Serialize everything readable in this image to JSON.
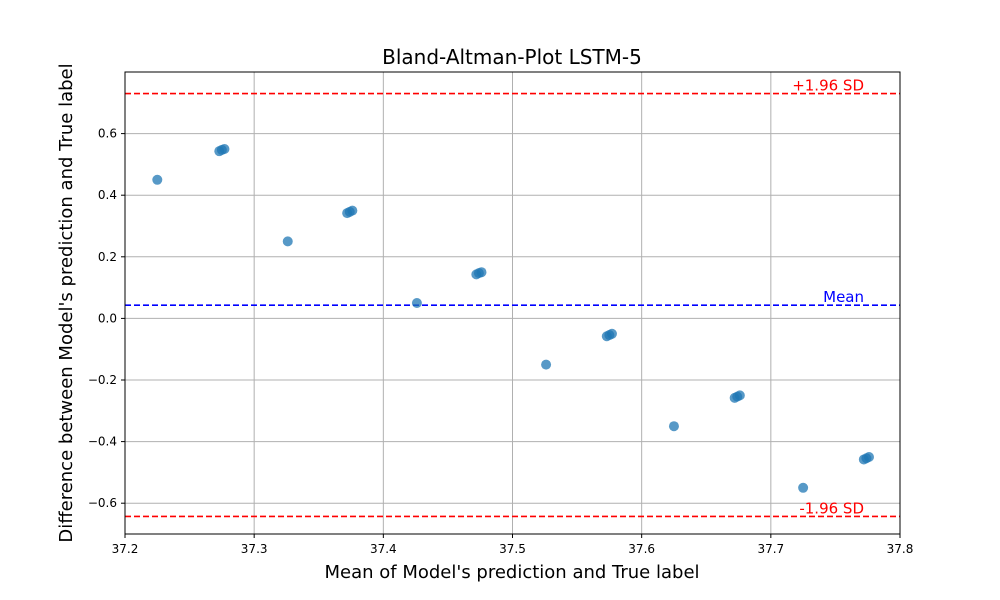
{
  "chart_data": {
    "type": "scatter",
    "title": "Bland-Altman-Plot LSTM-5",
    "xlabel": "Mean of Model's prediction and True label",
    "ylabel": "Difference between Model's prediction and True label",
    "xlim": [
      37.2,
      37.8
    ],
    "ylim": [
      -0.7,
      0.8
    ],
    "xticks": [
      37.2,
      37.3,
      37.4,
      37.5,
      37.6,
      37.7,
      37.8
    ],
    "yticks": [
      -0.6,
      -0.4,
      -0.2,
      0.0,
      0.2,
      0.4,
      0.6
    ],
    "xtick_labels": [
      "37.2",
      "37.3",
      "37.4",
      "37.5",
      "37.6",
      "37.7",
      "37.8"
    ],
    "ytick_labels": [
      "−0.6",
      "−0.4",
      "−0.2",
      "0.0",
      "0.2",
      "0.4",
      "0.6"
    ],
    "grid": true,
    "point_color": "#1f77b4",
    "points": [
      {
        "x": 37.225,
        "y": 0.45
      },
      {
        "x": 37.273,
        "y": 0.543
      },
      {
        "x": 37.275,
        "y": 0.547
      },
      {
        "x": 37.277,
        "y": 0.55
      },
      {
        "x": 37.326,
        "y": 0.25
      },
      {
        "x": 37.372,
        "y": 0.342
      },
      {
        "x": 37.374,
        "y": 0.346
      },
      {
        "x": 37.376,
        "y": 0.35
      },
      {
        "x": 37.426,
        "y": 0.05
      },
      {
        "x": 37.472,
        "y": 0.143
      },
      {
        "x": 37.474,
        "y": 0.147
      },
      {
        "x": 37.476,
        "y": 0.15
      },
      {
        "x": 37.526,
        "y": -0.15
      },
      {
        "x": 37.573,
        "y": -0.058
      },
      {
        "x": 37.575,
        "y": -0.054
      },
      {
        "x": 37.577,
        "y": -0.05
      },
      {
        "x": 37.625,
        "y": -0.35
      },
      {
        "x": 37.672,
        "y": -0.258
      },
      {
        "x": 37.674,
        "y": -0.254
      },
      {
        "x": 37.676,
        "y": -0.25
      },
      {
        "x": 37.725,
        "y": -0.55
      },
      {
        "x": 37.772,
        "y": -0.458
      },
      {
        "x": 37.774,
        "y": -0.454
      },
      {
        "x": 37.776,
        "y": -0.45
      }
    ],
    "reference_lines": [
      {
        "label": "+1.96 SD",
        "y": 0.73,
        "color": "#ff0000"
      },
      {
        "label": "Mean",
        "y": 0.043,
        "color": "#0000ff"
      },
      {
        "label": "-1.96 SD",
        "y": -0.643,
        "color": "#ff0000"
      }
    ]
  }
}
